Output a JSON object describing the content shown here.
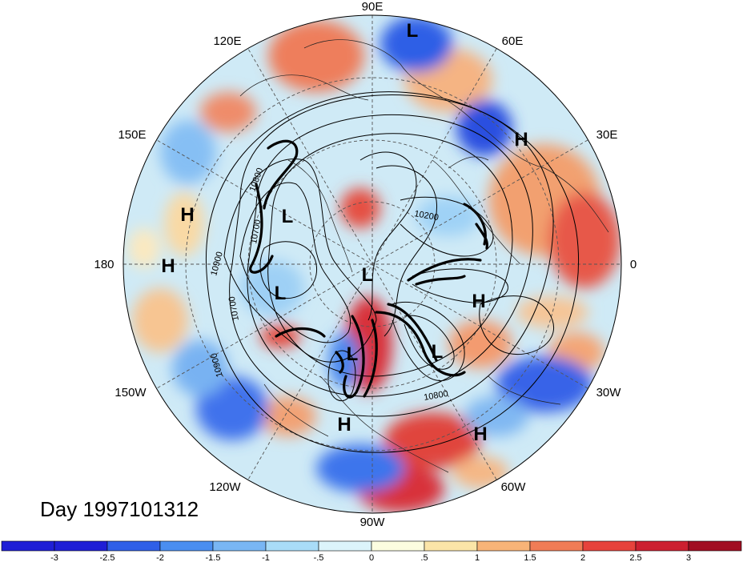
{
  "title": "Day 1997101312",
  "longitude_labels": [
    {
      "key": "lon-90e",
      "text": "90E"
    },
    {
      "key": "lon-60e",
      "text": "60E"
    },
    {
      "key": "lon-30e",
      "text": "30E"
    },
    {
      "key": "lon-0",
      "text": "0"
    },
    {
      "key": "lon-30w",
      "text": "30W"
    },
    {
      "key": "lon-60w",
      "text": "60W"
    },
    {
      "key": "lon-90w",
      "text": "90W"
    },
    {
      "key": "lon-120w",
      "text": "120W"
    },
    {
      "key": "lon-150w",
      "text": "150W"
    },
    {
      "key": "lon-180",
      "text": "180"
    },
    {
      "key": "lon-150e",
      "text": "150E"
    },
    {
      "key": "lon-120e",
      "text": "120E"
    }
  ],
  "pressure_centers": [
    {
      "key": "low-1",
      "type": "L"
    },
    {
      "key": "high-1",
      "type": "H"
    },
    {
      "key": "high-2",
      "type": "H"
    },
    {
      "key": "low-2",
      "type": "L"
    },
    {
      "key": "high-3",
      "type": "H"
    },
    {
      "key": "low-3",
      "type": "L"
    },
    {
      "key": "low-4",
      "type": "L"
    },
    {
      "key": "high-4",
      "type": "H"
    },
    {
      "key": "low-5",
      "type": "L"
    },
    {
      "key": "low-6",
      "type": "L"
    },
    {
      "key": "high-5",
      "type": "H"
    },
    {
      "key": "high-6",
      "type": "H"
    }
  ],
  "contour_labels": [
    "10800",
    "10700",
    "10900",
    "10700",
    "10900",
    "10200",
    "10800"
  ],
  "colorbar": {
    "ticks": [
      "-3",
      "-2.5",
      "-2",
      "-1.5",
      "-1",
      "-.5",
      "0",
      ".5",
      "1",
      "1.5",
      "2",
      "2.5",
      "3"
    ],
    "colors": [
      "#1f1fd6",
      "#2f5fe8",
      "#4a8ef0",
      "#79b6f4",
      "#a9dcf8",
      "#dcf4fb",
      "#fcfde0",
      "#fbe5a8",
      "#f8b478",
      "#f07c56",
      "#e6433c",
      "#cc2030",
      "#a10e22"
    ]
  },
  "colors": {
    "negative_strong": "#1f2fe0",
    "positive_strong": "#c81e2a",
    "neutral": "#fcfde0",
    "contour": "#000000"
  }
}
